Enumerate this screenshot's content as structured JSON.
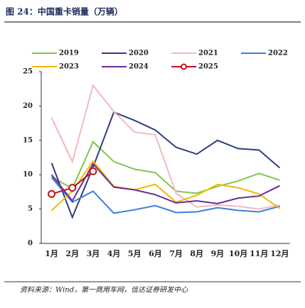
{
  "chart_data": {
    "type": "line",
    "title": "图 24：中国重卡销量（万辆）",
    "source": "资料来源：Wind，第一商用车网，信达证券研发中心",
    "categories": [
      "1月",
      "2月",
      "3月",
      "4月",
      "5月",
      "6月",
      "7月",
      "8月",
      "9月",
      "10月",
      "11月",
      "12月"
    ],
    "ylim": [
      0,
      25
    ],
    "yticks": [
      0,
      5,
      10,
      15,
      20,
      25
    ],
    "grid": false,
    "legend": "top",
    "series": [
      {
        "name": "2019",
        "color": "#7fc64a",
        "values": [
          9.7,
          8.0,
          14.8,
          11.9,
          10.8,
          10.3,
          7.6,
          7.3,
          8.3,
          9.1,
          10.2,
          9.2
        ]
      },
      {
        "name": "2020",
        "color": "#2e3f7f",
        "values": [
          11.7,
          3.8,
          11.1,
          19.1,
          17.9,
          16.5,
          14.0,
          13.0,
          15.0,
          13.8,
          13.6,
          11.0
        ]
      },
      {
        "name": "2021",
        "color": "#f4b8bf",
        "values": [
          18.3,
          11.9,
          23.0,
          19.2,
          16.2,
          15.8,
          7.3,
          5.3,
          5.6,
          5.4,
          5.0,
          5.6
        ]
      },
      {
        "name": "2022",
        "color": "#3a7fdc",
        "values": [
          9.6,
          6.0,
          7.6,
          4.4,
          4.9,
          5.5,
          4.5,
          4.6,
          5.2,
          4.8,
          4.6,
          5.4
        ]
      },
      {
        "name": "2023",
        "color": "#f5b800",
        "values": [
          4.8,
          7.6,
          12.0,
          8.3,
          7.8,
          8.6,
          6.0,
          7.0,
          8.6,
          8.1,
          7.2,
          5.1
        ]
      },
      {
        "name": "2024",
        "color": "#6a2c91",
        "values": [
          10.0,
          6.2,
          11.6,
          8.2,
          7.8,
          7.1,
          5.9,
          6.2,
          5.8,
          6.6,
          6.9,
          8.4
        ]
      },
      {
        "name": "2025",
        "color": "#c0141c",
        "marker": "circle",
        "values": [
          7.2,
          8.1,
          10.5,
          null,
          null,
          null,
          null,
          null,
          null,
          null,
          null,
          null
        ]
      }
    ]
  }
}
